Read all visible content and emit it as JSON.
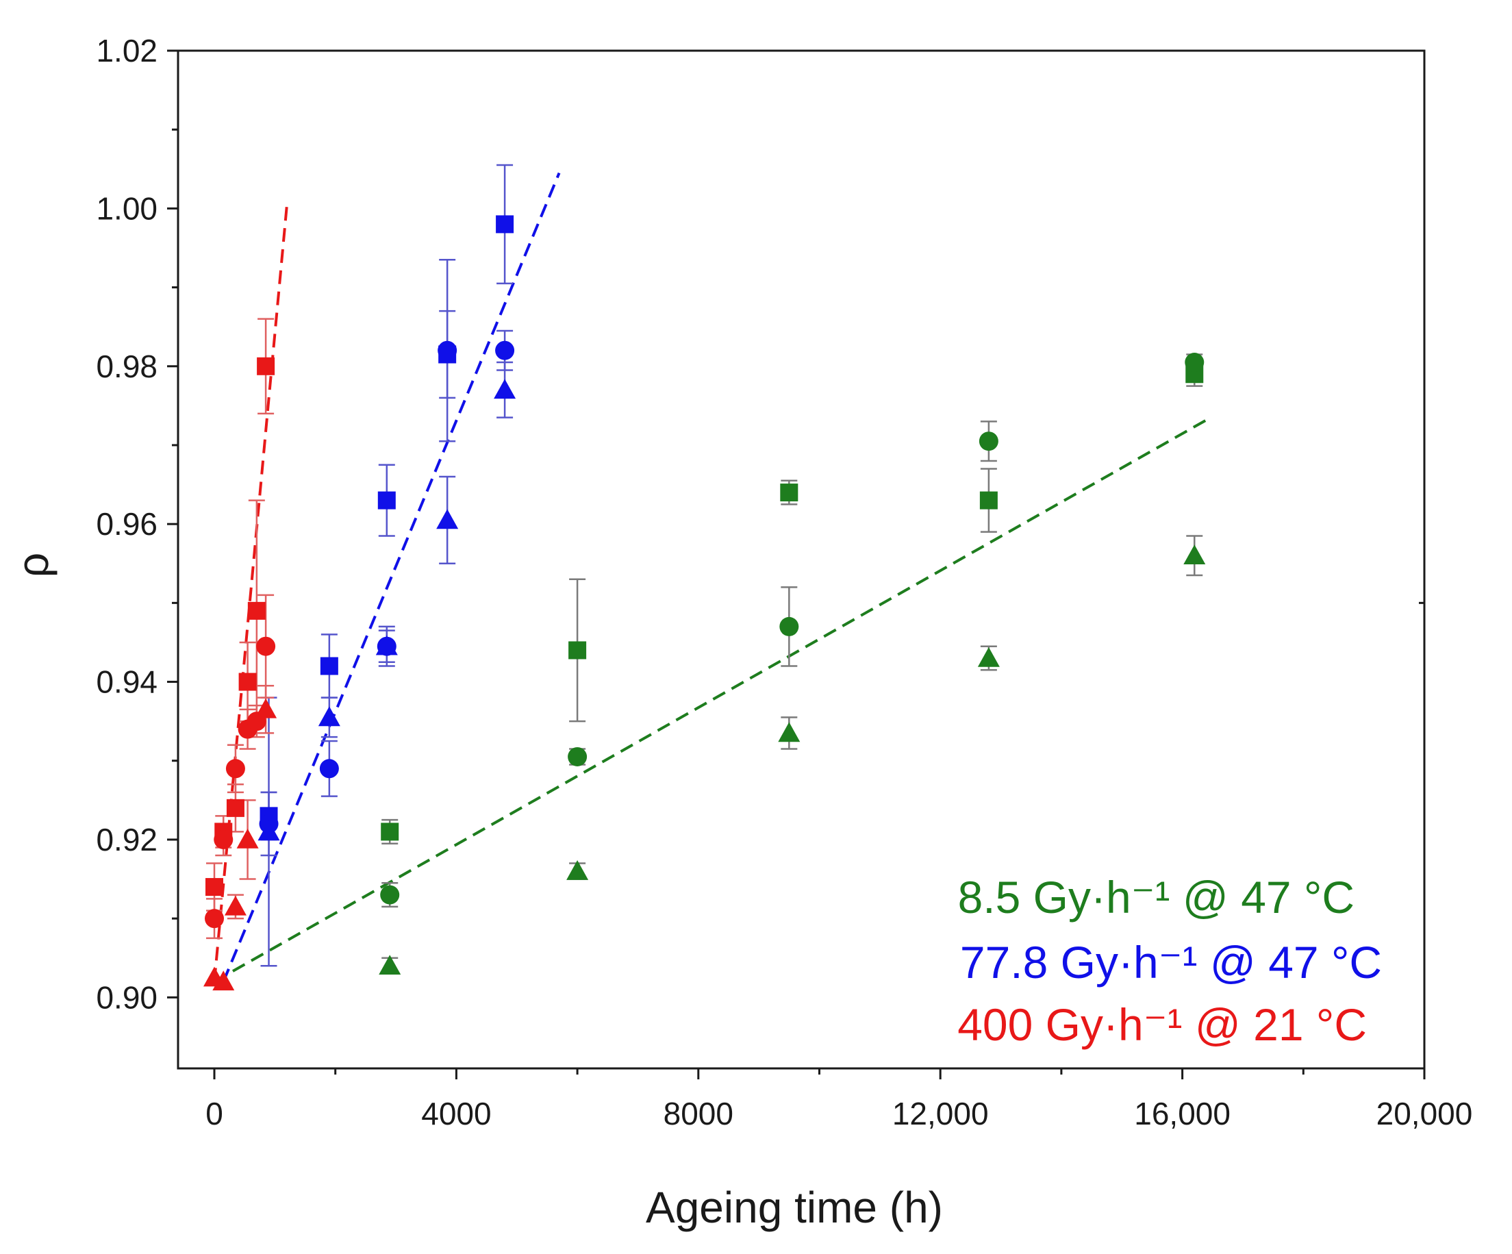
{
  "chart_data": {
    "type": "scatter",
    "title": "",
    "xlabel": "Ageing time (h)",
    "ylabel": "ρ",
    "xlim": [
      -600,
      20000
    ],
    "ylim": [
      0.891,
      1.02
    ],
    "grid": false,
    "x_ticks": [
      0,
      4000,
      8000,
      12000,
      16000,
      20000
    ],
    "x_tick_labels": [
      "0",
      "4000",
      "8000",
      "12,000",
      "16,000",
      "20,000"
    ],
    "y_ticks": [
      0.9,
      0.92,
      0.94,
      0.96,
      0.98,
      1.0,
      1.02
    ],
    "y_tick_labels": [
      "0.90",
      "0.92",
      "0.94",
      "0.96",
      "0.98",
      "1.00",
      "1.02"
    ],
    "legend_position": "bottom-right",
    "series": [
      {
        "name": "8.5 Gy·h⁻¹ @ 47 °C",
        "legend_label": "8.5 Gy·h⁻¹ @ 47 °C",
        "color": "#1e7d1e",
        "errorbar_color": "#7a7a7a",
        "points": [
          {
            "marker": "square",
            "x": 2900,
            "y": 0.921,
            "err": 0.0015
          },
          {
            "marker": "square",
            "x": 6000,
            "y": 0.944,
            "err": 0.009
          },
          {
            "marker": "square",
            "x": 9500,
            "y": 0.964,
            "err": 0.0015
          },
          {
            "marker": "square",
            "x": 12800,
            "y": 0.963,
            "err": 0.004
          },
          {
            "marker": "square",
            "x": 16200,
            "y": 0.979,
            "err": 0.0015
          },
          {
            "marker": "circle",
            "x": 2900,
            "y": 0.913,
            "err": 0.0015
          },
          {
            "marker": "circle",
            "x": 6000,
            "y": 0.9305,
            "err": 0.001
          },
          {
            "marker": "circle",
            "x": 9500,
            "y": 0.947,
            "err": 0.005
          },
          {
            "marker": "circle",
            "x": 12800,
            "y": 0.9705,
            "err": 0.0025
          },
          {
            "marker": "circle",
            "x": 16200,
            "y": 0.9805,
            "err": 0.001
          },
          {
            "marker": "triangle",
            "x": 2900,
            "y": 0.904,
            "err": 0.001
          },
          {
            "marker": "triangle",
            "x": 6000,
            "y": 0.916,
            "err": 0.001
          },
          {
            "marker": "triangle",
            "x": 9500,
            "y": 0.9335,
            "err": 0.002
          },
          {
            "marker": "triangle",
            "x": 12800,
            "y": 0.943,
            "err": 0.0015
          },
          {
            "marker": "triangle",
            "x": 16200,
            "y": 0.956,
            "err": 0.0025
          }
        ],
        "fit_line": {
          "x": [
            0,
            16400
          ],
          "y": [
            0.902,
            0.9732
          ]
        }
      },
      {
        "name": "77.8 Gy·h⁻¹ @ 47 °C",
        "legend_label": "77.8 Gy·h⁻¹ @ 47 °C",
        "color": "#1010e8",
        "errorbar_color": "#5555cc",
        "points": [
          {
            "marker": "square",
            "x": 900,
            "y": 0.923,
            "err": 0.003
          },
          {
            "marker": "square",
            "x": 1900,
            "y": 0.942,
            "err": 0.004
          },
          {
            "marker": "square",
            "x": 2850,
            "y": 0.963,
            "err": 0.0045
          },
          {
            "marker": "square",
            "x": 3850,
            "y": 0.9815,
            "err": 0.0055
          },
          {
            "marker": "square",
            "x": 4800,
            "y": 0.998,
            "err": 0.0075
          },
          {
            "marker": "circle",
            "x": 900,
            "y": 0.922,
            "err": 0.004
          },
          {
            "marker": "circle",
            "x": 1900,
            "y": 0.929,
            "err": 0.0035
          },
          {
            "marker": "circle",
            "x": 2850,
            "y": 0.9445,
            "err": 0.0025
          },
          {
            "marker": "circle",
            "x": 3850,
            "y": 0.982,
            "err": 0.0115
          },
          {
            "marker": "circle",
            "x": 4800,
            "y": 0.982,
            "err": 0.0025
          },
          {
            "marker": "triangle",
            "x": 900,
            "y": 0.921,
            "err": 0.017
          },
          {
            "marker": "triangle",
            "x": 1900,
            "y": 0.9355,
            "err": 0.0025
          },
          {
            "marker": "triangle",
            "x": 2850,
            "y": 0.9445,
            "err": 0.002
          },
          {
            "marker": "triangle",
            "x": 3850,
            "y": 0.9605,
            "err": 0.0055
          },
          {
            "marker": "triangle",
            "x": 4800,
            "y": 0.977,
            "err": 0.0035
          }
        ],
        "fit_line": {
          "x": [
            150,
            5700
          ],
          "y": [
            0.902,
            1.0045
          ]
        }
      },
      {
        "name": "400 Gy·h⁻¹ @ 21 °C",
        "legend_label": "400 Gy·h⁻¹ @ 21 °C",
        "color": "#e81818",
        "errorbar_color": "#e06060",
        "points": [
          {
            "marker": "square",
            "x": 0,
            "y": 0.914,
            "err": 0.003
          },
          {
            "marker": "square",
            "x": 150,
            "y": 0.921,
            "err": 0.002
          },
          {
            "marker": "square",
            "x": 350,
            "y": 0.924,
            "err": 0.003
          },
          {
            "marker": "square",
            "x": 550,
            "y": 0.94,
            "err": 0.005
          },
          {
            "marker": "square",
            "x": 700,
            "y": 0.949,
            "err": 0.014
          },
          {
            "marker": "square",
            "x": 850,
            "y": 0.98,
            "err": 0.006
          },
          {
            "marker": "circle",
            "x": 0,
            "y": 0.91,
            "err": 0.0025
          },
          {
            "marker": "circle",
            "x": 150,
            "y": 0.92,
            "err": 0.002
          },
          {
            "marker": "circle",
            "x": 350,
            "y": 0.929,
            "err": 0.003
          },
          {
            "marker": "circle",
            "x": 550,
            "y": 0.934,
            "err": 0.0025
          },
          {
            "marker": "circle",
            "x": 700,
            "y": 0.935,
            "err": 0.002
          },
          {
            "marker": "circle",
            "x": 850,
            "y": 0.9445,
            "err": 0.0065
          },
          {
            "marker": "triangle",
            "x": 0,
            "y": 0.9025,
            "err": 0
          },
          {
            "marker": "triangle",
            "x": 150,
            "y": 0.902,
            "err": 0
          },
          {
            "marker": "triangle",
            "x": 350,
            "y": 0.9115,
            "err": 0.0015
          },
          {
            "marker": "triangle",
            "x": 550,
            "y": 0.92,
            "err": 0.005
          },
          {
            "marker": "triangle",
            "x": 850,
            "y": 0.9365,
            "err": 0.003
          }
        ],
        "fit_line": {
          "x": [
            0,
            1200
          ],
          "y": [
            0.902,
            1.0005
          ]
        }
      }
    ]
  }
}
